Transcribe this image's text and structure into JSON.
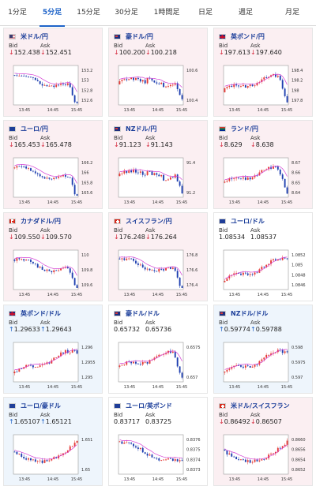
{
  "tabs": [
    {
      "label": "1分足",
      "active": false
    },
    {
      "label": "5分足",
      "active": true
    },
    {
      "label": "15分足",
      "active": false
    },
    {
      "label": "30分足",
      "active": false
    },
    {
      "label": "1時間足",
      "active": false
    },
    {
      "label": "日足",
      "active": false
    },
    {
      "label": "週足",
      "active": false
    },
    {
      "label": "月足",
      "active": false
    }
  ],
  "labels": {
    "bid": "Bid",
    "ask": "Ask"
  },
  "colors": {
    "down_bg": "#fbeff2",
    "up_bg": "#eef5fc",
    "bull": "#e53935",
    "bear": "#1e3fb0",
    "ma": "#d43fd4",
    "up_arrow": "#1e63c8",
    "down_arrow": "#d6293d"
  },
  "cards": [
    {
      "pair": "米ドル/円",
      "flag": "us",
      "trend": "down",
      "arrow": "↓",
      "bid": "152.438",
      "ask": "152.451",
      "ticks": [
        "153.2",
        "153",
        "152.8",
        "152.6"
      ],
      "times": [
        "13:45",
        "14:45",
        "15:45"
      ],
      "shape": "falling_sharp"
    },
    {
      "pair": "豪ドル/円",
      "flag": "au",
      "trend": "down",
      "arrow": "↓",
      "bid": "100.200",
      "ask": "100.218",
      "ticks": [
        "100.6",
        "100.4"
      ],
      "times": [
        "13:45",
        "14:45",
        "15:45"
      ],
      "shape": "flat_drop"
    },
    {
      "pair": "英ポンド/円",
      "flag": "gb",
      "trend": "down",
      "arrow": "↓",
      "bid": "197.613",
      "ask": "197.640",
      "ticks": [
        "198.4",
        "198.2",
        "198",
        "197.8"
      ],
      "times": [
        "13:45",
        "14:45",
        "15:45"
      ],
      "shape": "rise_drop"
    },
    {
      "pair": "ユーロ/円",
      "flag": "eu",
      "trend": "down",
      "arrow": "↓",
      "bid": "165.453",
      "ask": "165.478",
      "ticks": [
        "166.2",
        "166",
        "165.8",
        "165.6"
      ],
      "times": [
        "13:45",
        "14:45",
        "15:45"
      ],
      "shape": "falling_sharp"
    },
    {
      "pair": "NZドル/円",
      "flag": "nz",
      "trend": "down",
      "arrow": "↓",
      "bid": "91.123",
      "ask": "91.143",
      "ticks": [
        "91.4",
        "91.2"
      ],
      "times": [
        "13:45",
        "14:45",
        "15:45"
      ],
      "shape": "flat_drop"
    },
    {
      "pair": "ランド/円",
      "flag": "za",
      "trend": "down",
      "arrow": "↓",
      "bid": "8.629",
      "ask": "8.638",
      "ticks": [
        "8.67",
        "8.66",
        "8.65",
        "8.64"
      ],
      "times": [
        "13:45",
        "14:45",
        "15:45"
      ],
      "shape": "rise_drop"
    },
    {
      "pair": "カナダドル/円",
      "flag": "ca",
      "trend": "down",
      "arrow": "↓",
      "bid": "109.550",
      "ask": "109.570",
      "ticks": [
        "110",
        "109.8",
        "109.6"
      ],
      "times": [
        "13:45",
        "14:45",
        "15:45"
      ],
      "shape": "falling_sharp"
    },
    {
      "pair": "スイスフラン/円",
      "flag": "ch",
      "trend": "down",
      "arrow": "↓",
      "bid": "176.248",
      "ask": "176.264",
      "ticks": [
        "176.8",
        "176.6",
        "176.4"
      ],
      "times": [
        "13:45",
        "14:45",
        "15:45"
      ],
      "shape": "falling_sharp"
    },
    {
      "pair": "ユーロ/ドル",
      "flag": "eu",
      "trend": "neutral",
      "arrow": "",
      "bid": "1.08534",
      "ask": "1.08537",
      "ticks": [
        "1.0852",
        "1.085",
        "1.0848",
        "1.0846"
      ],
      "times": [
        "13:45",
        "14:45",
        "15:45"
      ],
      "shape": "rising"
    },
    {
      "pair": "英ポンド/ドル",
      "flag": "gb",
      "trend": "up",
      "arrow": "↑",
      "bid": "1.29633",
      "ask": "1.29643",
      "ticks": [
        "1.296",
        "1.2955",
        "1.295"
      ],
      "times": [
        "13:45",
        "14:45",
        "15:45"
      ],
      "shape": "rising"
    },
    {
      "pair": "豪ドル/ドル",
      "flag": "au",
      "trend": "neutral",
      "arrow": "",
      "bid": "0.65732",
      "ask": "0.65736",
      "ticks": [
        "0.6575",
        "0.657"
      ],
      "times": [
        "13:45",
        "14:45",
        "15:45"
      ],
      "shape": "rise_drop"
    },
    {
      "pair": "NZドル/ドル",
      "flag": "nz",
      "trend": "up",
      "arrow": "↑",
      "bid": "0.59774",
      "ask": "0.59788",
      "ticks": [
        "0.598",
        "0.5975",
        "0.597"
      ],
      "times": [
        "13:45",
        "14:45",
        "15:45"
      ],
      "shape": "rising"
    },
    {
      "pair": "ユーロ/豪ドル",
      "flag": "eu",
      "trend": "up",
      "arrow": "↑",
      "bid": "1.65107",
      "ask": "1.65121",
      "ticks": [
        "1.651",
        "1.65"
      ],
      "times": [
        "13:45",
        "14:45",
        "15:45"
      ],
      "shape": "dip_rise"
    },
    {
      "pair": "ユーロ/英ポンド",
      "flag": "eu",
      "trend": "neutral",
      "arrow": "",
      "bid": "0.83717",
      "ask": "0.83725",
      "ticks": [
        "0.8376",
        "0.8375",
        "0.8374",
        "0.8373"
      ],
      "times": [
        "13:45",
        "14:45",
        "15:45"
      ],
      "shape": "falling"
    },
    {
      "pair": "米ドル/スイスフラン",
      "flag": "ch",
      "trend": "down",
      "arrow": "↓",
      "bid": "0.86492",
      "ask": "0.86507",
      "ticks": [
        "0.8660",
        "0.8656",
        "0.8654",
        "0.8652"
      ],
      "times": [
        "13:45",
        "14:45",
        "15:45"
      ],
      "shape": "dip_rise"
    }
  ]
}
